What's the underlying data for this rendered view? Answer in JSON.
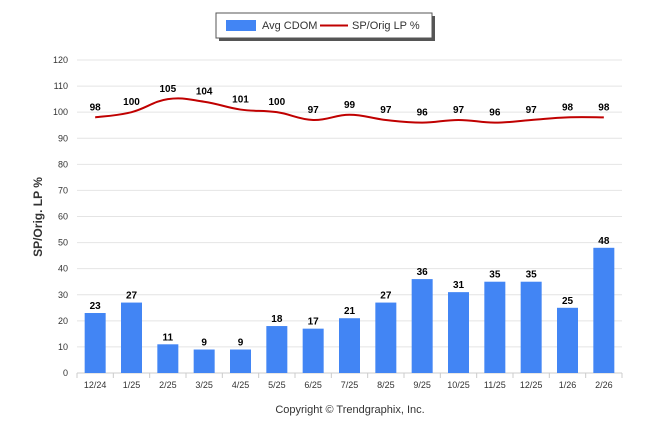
{
  "chart_data": {
    "type": "bar",
    "categories": [
      "12/24",
      "1/25",
      "2/25",
      "3/25",
      "4/25",
      "5/25",
      "6/25",
      "7/25",
      "8/25",
      "9/25",
      "10/25",
      "11/25",
      "12/25",
      "1/26",
      "2/26"
    ],
    "series": [
      {
        "name": "Avg CDOM",
        "type": "bar",
        "color": "#4285f4",
        "values": [
          23,
          27,
          11,
          9,
          9,
          18,
          17,
          21,
          27,
          36,
          31,
          35,
          35,
          25,
          48
        ]
      },
      {
        "name": "SP/Orig LP %",
        "type": "line",
        "color": "#c00000",
        "values": [
          98,
          100,
          105,
          104,
          101,
          100,
          97,
          99,
          97,
          96,
          97,
          96,
          97,
          98,
          98
        ]
      }
    ],
    "ylabel": "SP/Orig. LP %",
    "ylim": [
      0,
      120
    ],
    "yticks": [
      0,
      10,
      20,
      30,
      40,
      50,
      60,
      70,
      80,
      90,
      100,
      110,
      120
    ],
    "grid": true,
    "legend_position": "top-center",
    "footer": "Copyright © Trendgraphix, Inc."
  }
}
